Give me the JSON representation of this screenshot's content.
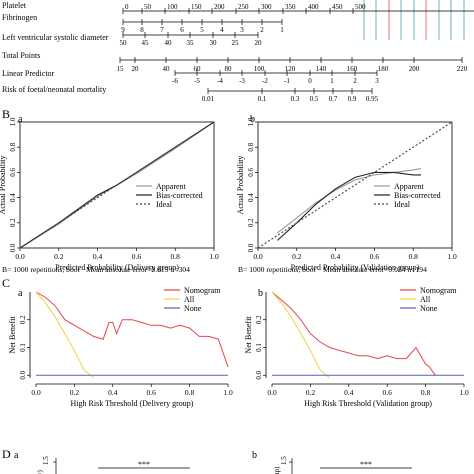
{
  "nomogram": {
    "rows": [
      {
        "label": "Platelet",
        "ticks": [
          "0",
          "50",
          "100",
          "150",
          "200",
          "250",
          "300",
          "350",
          "400",
          "450",
          "500"
        ]
      },
      {
        "label": "Fibrinogen",
        "ticks": [
          "9",
          "8",
          "7",
          "6",
          "5",
          "4",
          "3",
          "2",
          "1"
        ]
      },
      {
        "label": "Left ventricular systolic diameter",
        "ticks": [
          "50",
          "45",
          "40",
          "35",
          "30",
          "25",
          "20"
        ]
      },
      {
        "label": "Total Points",
        "ticks": [
          "15",
          "20",
          "40",
          "60",
          "80",
          "100",
          "120",
          "140",
          "160",
          "180",
          "200",
          "220"
        ]
      },
      {
        "label": "Linear Predictor",
        "ticks": [
          "-6",
          "-5",
          "-4",
          "-3",
          "-2",
          "-1",
          "0",
          "1",
          "2",
          "3"
        ]
      },
      {
        "label": "Risk of foetal/neonatal mortality",
        "ticks": [
          "0.01",
          "0.1",
          "0.3",
          "0.5",
          "0.7",
          "0.9",
          "0.95"
        ]
      }
    ]
  },
  "panel_letters": {
    "B": "B",
    "C": "C",
    "D": "D"
  },
  "sub_letters": {
    "a": "a",
    "b": "b"
  },
  "chart_data": [
    {
      "panel": "B-a",
      "type": "line",
      "xlabel": "Predicted Probability (Delivery group)",
      "ylabel": "Actual Probability",
      "xticks": [
        "0.0",
        "0.2",
        "0.4",
        "0.6",
        "0.8",
        "1.0"
      ],
      "yticks": [
        "0.0",
        "0.2",
        "0.4",
        "0.6",
        "0.8",
        "1.0"
      ],
      "xlim": [
        0,
        1
      ],
      "ylim": [
        0,
        1
      ],
      "legend": [
        "Apparent",
        "Bias-corrected",
        "Ideal"
      ],
      "footnote_left": "B= 1000 repetitions, boot",
      "footnote_right": "Mean absolute error=0.015 n=304",
      "series": [
        {
          "name": "Apparent",
          "color": "#999999",
          "x": [
            0,
            0.2,
            0.4,
            0.5,
            0.6,
            0.8,
            1.0
          ],
          "y": [
            0,
            0.19,
            0.41,
            0.5,
            0.59,
            0.79,
            1.0
          ]
        },
        {
          "name": "Bias-corrected",
          "color": "#222222",
          "x": [
            0,
            0.2,
            0.4,
            0.5,
            0.6,
            0.8,
            1.0
          ],
          "y": [
            0,
            0.2,
            0.42,
            0.5,
            0.6,
            0.8,
            1.0
          ]
        },
        {
          "name": "Ideal",
          "color": "#444444",
          "dashed": true,
          "x": [
            0,
            1
          ],
          "y": [
            0,
            1
          ]
        }
      ]
    },
    {
      "panel": "B-b",
      "type": "line",
      "xlabel": "Predicted Probability (Validation group)",
      "ylabel": "Actual Probability",
      "xticks": [
        "0.0",
        "0.2",
        "0.4",
        "0.6",
        "0.8",
        "1.0"
      ],
      "yticks": [
        "0.0",
        "0.2",
        "0.4",
        "0.6",
        "0.8",
        "1.0"
      ],
      "xlim": [
        0,
        1
      ],
      "ylim": [
        0,
        1
      ],
      "legend": [
        "Apparent",
        "Bias-corrected",
        "Ideal"
      ],
      "footnote_left": "B= 1000 repetitions, boot",
      "footnote_right": "Mean absolute error=0.024 n=194",
      "series": [
        {
          "name": "Apparent",
          "color": "#999999",
          "x": [
            0.1,
            0.2,
            0.3,
            0.4,
            0.5,
            0.6,
            0.7,
            0.8,
            0.84
          ],
          "y": [
            0.12,
            0.24,
            0.36,
            0.46,
            0.54,
            0.58,
            0.6,
            0.62,
            0.63
          ]
        },
        {
          "name": "Bias-corrected",
          "color": "#222222",
          "x": [
            0.1,
            0.2,
            0.3,
            0.4,
            0.5,
            0.6,
            0.7,
            0.8,
            0.84
          ],
          "y": [
            0.06,
            0.2,
            0.35,
            0.47,
            0.56,
            0.6,
            0.6,
            0.58,
            0.58
          ]
        },
        {
          "name": "Ideal",
          "color": "#444444",
          "dashed": true,
          "x": [
            0,
            1
          ],
          "y": [
            0,
            1
          ]
        }
      ]
    },
    {
      "panel": "C-a",
      "type": "line",
      "xlabel": "High Risk Threshold (Delivery group)",
      "ylabel": "Net Benefit",
      "xticks": [
        "0.0",
        "0.2",
        "0.4",
        "0.6",
        "0.8",
        "1.0"
      ],
      "yticks": [
        "0.0",
        "0.1",
        "0.2"
      ],
      "xlim": [
        0,
        1
      ],
      "ylim": [
        -0.01,
        0.3
      ],
      "legend": [
        "Nomogram",
        "All",
        "None"
      ],
      "series": [
        {
          "name": "Nomogram",
          "color": "#e3454b",
          "x": [
            0,
            0.05,
            0.1,
            0.15,
            0.2,
            0.25,
            0.3,
            0.35,
            0.38,
            0.4,
            0.42,
            0.45,
            0.5,
            0.55,
            0.6,
            0.65,
            0.7,
            0.75,
            0.8,
            0.85,
            0.9,
            0.95,
            1.0
          ],
          "y": [
            0.3,
            0.28,
            0.25,
            0.2,
            0.18,
            0.16,
            0.14,
            0.13,
            0.19,
            0.19,
            0.15,
            0.2,
            0.2,
            0.19,
            0.18,
            0.18,
            0.17,
            0.18,
            0.17,
            0.14,
            0.14,
            0.13,
            0.03
          ]
        },
        {
          "name": "All",
          "color": "#f0d33c",
          "x": [
            0,
            0.05,
            0.1,
            0.15,
            0.2,
            0.25,
            0.3
          ],
          "y": [
            0.3,
            0.26,
            0.21,
            0.15,
            0.09,
            0.02,
            -0.01
          ]
        },
        {
          "name": "None",
          "color": "#5b5bc8",
          "x": [
            0,
            1
          ],
          "y": [
            0,
            0
          ]
        }
      ]
    },
    {
      "panel": "C-b",
      "type": "line",
      "xlabel": "High Risk Threshold (Validation group)",
      "ylabel": "Net Benefit",
      "xticks": [
        "0.0",
        "0.2",
        "0.4",
        "0.6",
        "0.8",
        "1.0"
      ],
      "yticks": [
        "0.0",
        "0.1",
        "0.2"
      ],
      "xlim": [
        0,
        1
      ],
      "ylim": [
        -0.01,
        0.3
      ],
      "legend": [
        "Nomogram",
        "All",
        "None"
      ],
      "series": [
        {
          "name": "Nomogram",
          "color": "#e3454b",
          "x": [
            0,
            0.05,
            0.1,
            0.15,
            0.2,
            0.25,
            0.3,
            0.35,
            0.4,
            0.45,
            0.5,
            0.55,
            0.6,
            0.65,
            0.7,
            0.75,
            0.8,
            0.82,
            0.85
          ],
          "y": [
            0.3,
            0.27,
            0.24,
            0.2,
            0.15,
            0.12,
            0.1,
            0.09,
            0.08,
            0.07,
            0.07,
            0.06,
            0.07,
            0.06,
            0.06,
            0.1,
            0.04,
            0.03,
            0.0
          ]
        },
        {
          "name": "All",
          "color": "#f0d33c",
          "x": [
            0,
            0.05,
            0.1,
            0.15,
            0.2,
            0.25,
            0.3
          ],
          "y": [
            0.3,
            0.26,
            0.21,
            0.15,
            0.09,
            0.02,
            -0.01
          ]
        },
        {
          "name": "None",
          "color": "#5b5bc8",
          "x": [
            0,
            1
          ],
          "y": [
            0,
            0
          ]
        }
      ]
    }
  ],
  "panel_d": {
    "a": {
      "tick": "1.5",
      "sig": "***",
      "ylabel_partial": "y)"
    },
    "b": {
      "tick": "1.5",
      "sig": "***",
      "ylabel_partial": "up)"
    }
  }
}
